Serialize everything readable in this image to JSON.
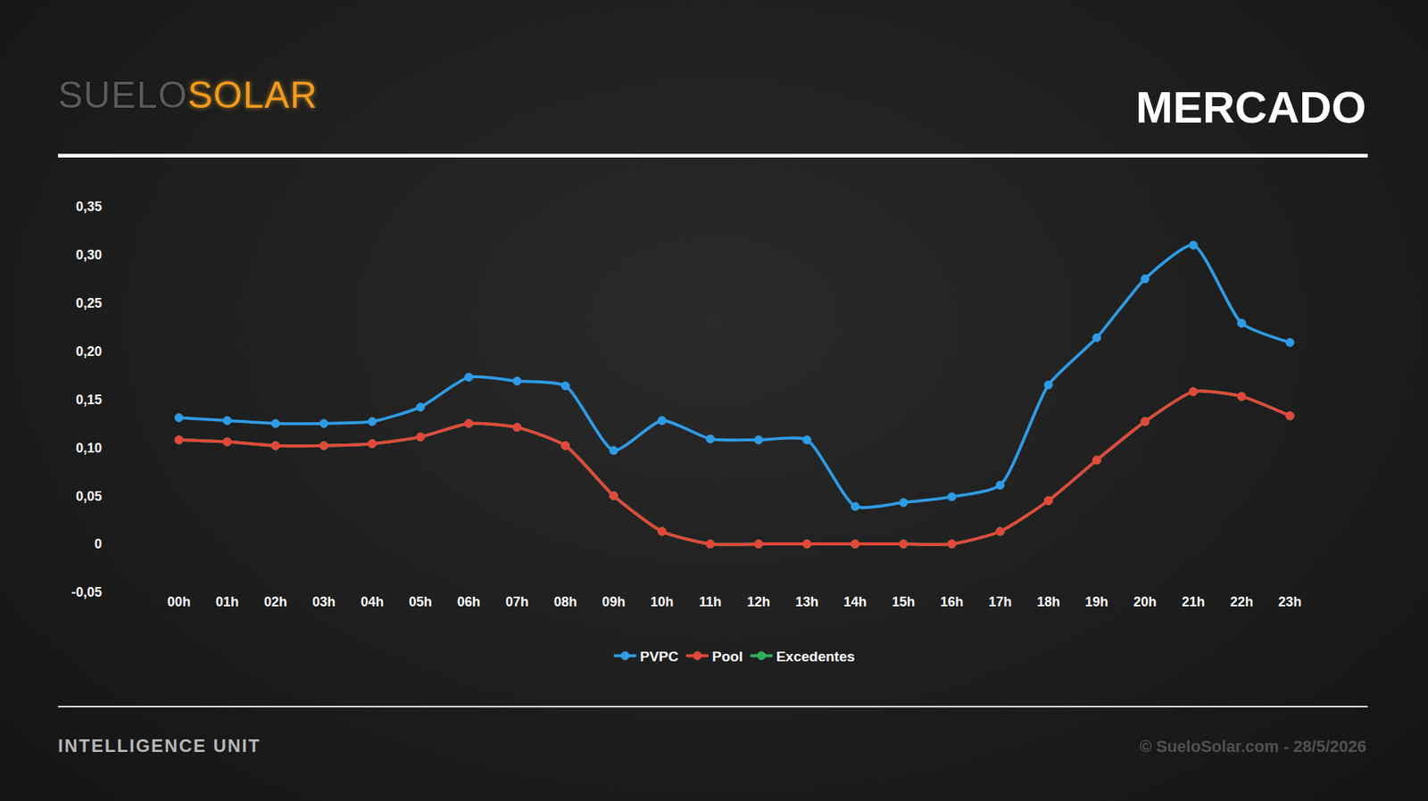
{
  "header": {
    "logo": "SUELOSOLAR"
  },
  "footer": {
    "left": "INTELLIGENCE UNIT",
    "right": "© SueloSolar.com - 28/5/2026"
  },
  "chart_data": {
    "type": "line",
    "title": "MERCADO",
    "categories": [
      "00h",
      "01h",
      "02h",
      "03h",
      "04h",
      "05h",
      "06h",
      "07h",
      "08h",
      "09h",
      "10h",
      "11h",
      "12h",
      "13h",
      "14h",
      "15h",
      "16h",
      "17h",
      "18h",
      "19h",
      "20h",
      "21h",
      "22h",
      "23h"
    ],
    "series": [
      {
        "name": "PVPC",
        "color": "#2f9be4",
        "values": [
          0.131,
          0.128,
          0.125,
          0.125,
          0.127,
          0.142,
          0.173,
          0.169,
          0.164,
          0.097,
          0.128,
          0.109,
          0.108,
          0.108,
          0.039,
          0.043,
          0.049,
          0.061,
          0.165,
          0.214,
          0.275,
          0.31,
          0.229,
          0.209
        ]
      },
      {
        "name": "Pool",
        "color": "#e2483a",
        "values": [
          0.108,
          0.106,
          0.102,
          0.102,
          0.104,
          0.111,
          0.125,
          0.121,
          0.102,
          0.05,
          0.013,
          0.0,
          0.0,
          0.0,
          0.0,
          0.0,
          0.0,
          0.013,
          0.045,
          0.087,
          0.127,
          0.158,
          0.153,
          0.133
        ]
      },
      {
        "name": "Excedentes",
        "color": "#2fae5a",
        "values": [
          0.108,
          0.106,
          0.102,
          0.102,
          0.104,
          0.111,
          0.125,
          0.121,
          0.102,
          0.05,
          0.013,
          0.0,
          0.0,
          0.0,
          0.0,
          0.0,
          0.0,
          0.013,
          0.045,
          0.087,
          0.127,
          0.158,
          0.153,
          0.133
        ]
      }
    ],
    "ylim": [
      -0.05,
      0.35
    ],
    "yticks": [
      {
        "value": -0.05,
        "label": "-0,05"
      },
      0,
      {
        "value": 0.05,
        "label": "0,05"
      },
      {
        "value": 0.1,
        "label": "0,10"
      },
      {
        "value": 0.15,
        "label": "0,15"
      },
      {
        "value": 0.2,
        "label": "0,20"
      },
      {
        "value": 0.25,
        "label": "0,25"
      },
      {
        "value": 0.3,
        "label": "0,30"
      },
      {
        "value": 0.35,
        "label": "0,35"
      }
    ],
    "grid": false,
    "legend": "bottom",
    "marker": "circle",
    "line_style": "solid"
  }
}
